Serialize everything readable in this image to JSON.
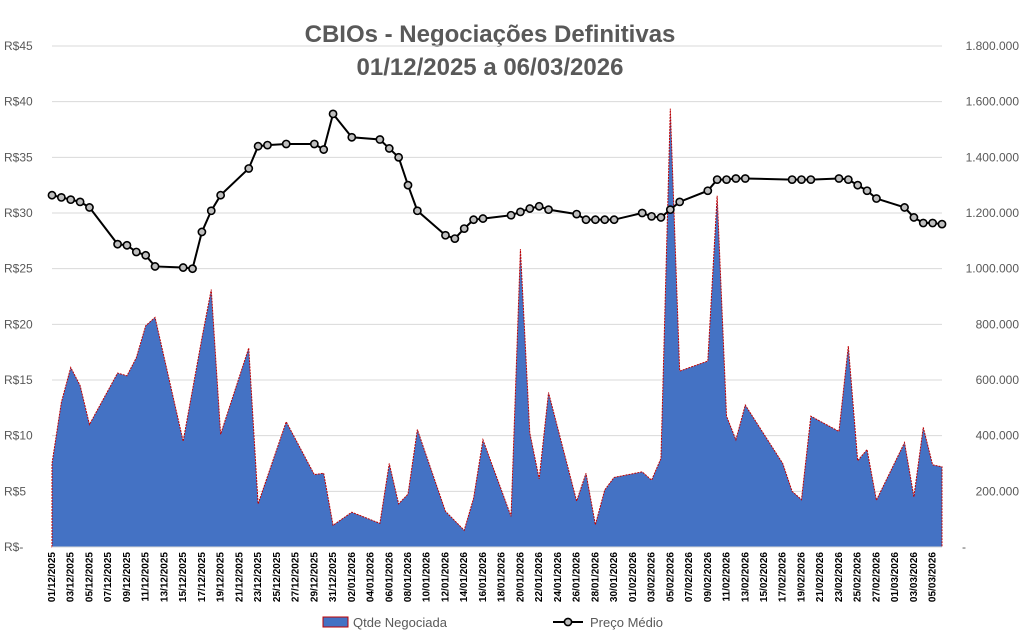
{
  "chart_data": {
    "type": "line",
    "title": "CBIOs - Negociações Definitivas",
    "subtitle": "01/12/2025 a 06/03/2026",
    "left_axis": {
      "ylim": [
        0,
        45
      ],
      "ticks": [
        {
          "value": 0,
          "label": "R$-"
        },
        {
          "value": 5,
          "label": "R$5"
        },
        {
          "value": 10,
          "label": "R$10"
        },
        {
          "value": 15,
          "label": "R$15"
        },
        {
          "value": 20,
          "label": "R$20"
        },
        {
          "value": 25,
          "label": "R$25"
        },
        {
          "value": 30,
          "label": "R$30"
        },
        {
          "value": 35,
          "label": "R$35"
        },
        {
          "value": 40,
          "label": "R$40"
        },
        {
          "value": 45,
          "label": "R$45"
        }
      ]
    },
    "right_axis": {
      "ylim": [
        0,
        1800000
      ],
      "ticks": [
        {
          "value": 0,
          "label": "-"
        },
        {
          "value": 200000,
          "label": "200.000"
        },
        {
          "value": 400000,
          "label": "400.000"
        },
        {
          "value": 600000,
          "label": "600.000"
        },
        {
          "value": 800000,
          "label": "800.000"
        },
        {
          "value": 1000000,
          "label": "1.000.000"
        },
        {
          "value": 1200000,
          "label": "1.200.000"
        },
        {
          "value": 1400000,
          "label": "1.400.000"
        },
        {
          "value": 1600000,
          "label": "1.600.000"
        },
        {
          "value": 1800000,
          "label": "1.800.000"
        }
      ]
    },
    "x_start": "2025-12-01",
    "x_end": "2026-03-06",
    "x_tick_labels": [
      "01/12/2025",
      "03/12/2025",
      "05/12/2025",
      "07/12/2025",
      "09/12/2025",
      "11/12/2025",
      "13/12/2025",
      "15/12/2025",
      "17/12/2025",
      "19/12/2025",
      "21/12/2025",
      "23/12/2025",
      "25/12/2025",
      "27/12/2025",
      "29/12/2025",
      "31/12/2025",
      "02/01/2026",
      "04/01/2026",
      "06/01/2026",
      "08/01/2026",
      "10/01/2026",
      "12/01/2026",
      "14/01/2026",
      "16/01/2026",
      "18/01/2026",
      "20/01/2026",
      "22/01/2026",
      "24/01/2026",
      "26/01/2026",
      "28/01/2026",
      "30/01/2026",
      "01/02/2026",
      "03/02/2026",
      "05/02/2026",
      "07/02/2026",
      "09/02/2026",
      "11/02/2026",
      "13/02/2026",
      "15/02/2026",
      "17/02/2026",
      "19/02/2026",
      "21/02/2026",
      "23/02/2026",
      "25/02/2026",
      "27/02/2026",
      "01/03/2026",
      "03/03/2026",
      "05/03/2026"
    ],
    "grid": true,
    "legend_position": "bottom",
    "series": [
      {
        "name": "Qtde Negociada",
        "type": "area",
        "axis": "right",
        "color": "#4472C4",
        "edge_color": "#C00000",
        "points": [
          [
            "2025-12-01",
            300000
          ],
          [
            "2025-12-02",
            520000
          ],
          [
            "2025-12-03",
            645000
          ],
          [
            "2025-12-04",
            580000
          ],
          [
            "2025-12-05",
            440000
          ],
          [
            "2025-12-08",
            625000
          ],
          [
            "2025-12-09",
            615000
          ],
          [
            "2025-12-10",
            680000
          ],
          [
            "2025-12-11",
            795000
          ],
          [
            "2025-12-12",
            825000
          ],
          [
            "2025-12-15",
            380000
          ],
          [
            "2025-12-17",
            750000
          ],
          [
            "2025-12-18",
            925000
          ],
          [
            "2025-12-19",
            405000
          ],
          [
            "2025-12-22",
            715000
          ],
          [
            "2025-12-23",
            155000
          ],
          [
            "2025-12-26",
            450000
          ],
          [
            "2025-12-29",
            260000
          ],
          [
            "2025-12-30",
            265000
          ],
          [
            "2025-12-31",
            78000
          ],
          [
            "2026-01-02",
            125000
          ],
          [
            "2026-01-05",
            85000
          ],
          [
            "2026-01-06",
            300000
          ],
          [
            "2026-01-07",
            155000
          ],
          [
            "2026-01-08",
            190000
          ],
          [
            "2026-01-09",
            422000
          ],
          [
            "2026-01-12",
            128000
          ],
          [
            "2026-01-14",
            60000
          ],
          [
            "2026-01-15",
            175000
          ],
          [
            "2026-01-16",
            385000
          ],
          [
            "2026-01-19",
            110000
          ],
          [
            "2026-01-20",
            1070000
          ],
          [
            "2026-01-21",
            410000
          ],
          [
            "2026-01-22",
            245000
          ],
          [
            "2026-01-23",
            555000
          ],
          [
            "2026-01-26",
            165000
          ],
          [
            "2026-01-27",
            265000
          ],
          [
            "2026-01-28",
            80000
          ],
          [
            "2026-01-29",
            205000
          ],
          [
            "2026-01-30",
            250000
          ],
          [
            "2026-02-02",
            270000
          ],
          [
            "2026-02-03",
            240000
          ],
          [
            "2026-02-04",
            318000
          ],
          [
            "2026-02-05",
            1575000
          ],
          [
            "2026-02-06",
            632000
          ],
          [
            "2026-02-09",
            668000
          ],
          [
            "2026-02-10",
            1262000
          ],
          [
            "2026-02-11",
            470000
          ],
          [
            "2026-02-12",
            385000
          ],
          [
            "2026-02-13",
            510000
          ],
          [
            "2026-02-17",
            300000
          ],
          [
            "2026-02-18",
            200000
          ],
          [
            "2026-02-19",
            170000
          ],
          [
            "2026-02-20",
            470000
          ],
          [
            "2026-02-23",
            415000
          ],
          [
            "2026-02-24",
            722000
          ],
          [
            "2026-02-25",
            310000
          ],
          [
            "2026-02-26",
            350000
          ],
          [
            "2026-02-27",
            168000
          ],
          [
            "2026-03-02",
            375000
          ],
          [
            "2026-03-03",
            180000
          ],
          [
            "2026-03-04",
            430000
          ],
          [
            "2026-03-05",
            295000
          ],
          [
            "2026-03-06",
            288000
          ]
        ]
      },
      {
        "name": "Preço Médio",
        "type": "line",
        "axis": "left",
        "color": "#000000",
        "points": [
          [
            "2025-12-01",
            31.6
          ],
          [
            "2025-12-02",
            31.4
          ],
          [
            "2025-12-03",
            31.2
          ],
          [
            "2025-12-04",
            31.0
          ],
          [
            "2025-12-05",
            30.5
          ],
          [
            "2025-12-08",
            27.2
          ],
          [
            "2025-12-09",
            27.1
          ],
          [
            "2025-12-10",
            26.5
          ],
          [
            "2025-12-11",
            26.2
          ],
          [
            "2025-12-12",
            25.2
          ],
          [
            "2025-12-15",
            25.1
          ],
          [
            "2025-12-16",
            25.0
          ],
          [
            "2025-12-17",
            28.3
          ],
          [
            "2025-12-18",
            30.2
          ],
          [
            "2025-12-19",
            31.6
          ],
          [
            "2025-12-22",
            34.0
          ],
          [
            "2025-12-23",
            36.0
          ],
          [
            "2025-12-24",
            36.1
          ],
          [
            "2025-12-26",
            36.2
          ],
          [
            "2025-12-29",
            36.2
          ],
          [
            "2025-12-30",
            35.7
          ],
          [
            "2025-12-31",
            38.9
          ],
          [
            "2026-01-02",
            36.8
          ],
          [
            "2026-01-05",
            36.6
          ],
          [
            "2026-01-06",
            35.8
          ],
          [
            "2026-01-07",
            35.0
          ],
          [
            "2026-01-08",
            32.5
          ],
          [
            "2026-01-09",
            30.2
          ],
          [
            "2026-01-12",
            28.0
          ],
          [
            "2026-01-13",
            27.7
          ],
          [
            "2026-01-14",
            28.6
          ],
          [
            "2026-01-15",
            29.4
          ],
          [
            "2026-01-16",
            29.5
          ],
          [
            "2026-01-19",
            29.8
          ],
          [
            "2026-01-20",
            30.1
          ],
          [
            "2026-01-21",
            30.4
          ],
          [
            "2026-01-22",
            30.6
          ],
          [
            "2026-01-23",
            30.3
          ],
          [
            "2026-01-26",
            29.9
          ],
          [
            "2026-01-27",
            29.4
          ],
          [
            "2026-01-28",
            29.4
          ],
          [
            "2026-01-29",
            29.4
          ],
          [
            "2026-01-30",
            29.4
          ],
          [
            "2026-02-02",
            30.0
          ],
          [
            "2026-02-03",
            29.7
          ],
          [
            "2026-02-04",
            29.6
          ],
          [
            "2026-02-05",
            30.3
          ],
          [
            "2026-02-06",
            31.0
          ],
          [
            "2026-02-09",
            32.0
          ],
          [
            "2026-02-10",
            33.0
          ],
          [
            "2026-02-11",
            33.0
          ],
          [
            "2026-02-12",
            33.1
          ],
          [
            "2026-02-13",
            33.1
          ],
          [
            "2026-02-18",
            33.0
          ],
          [
            "2026-02-19",
            33.0
          ],
          [
            "2026-02-20",
            33.0
          ],
          [
            "2026-02-23",
            33.1
          ],
          [
            "2026-02-24",
            33.0
          ],
          [
            "2026-02-25",
            32.5
          ],
          [
            "2026-02-26",
            32.0
          ],
          [
            "2026-02-27",
            31.3
          ],
          [
            "2026-03-02",
            30.5
          ],
          [
            "2026-03-03",
            29.6
          ],
          [
            "2026-03-04",
            29.1
          ],
          [
            "2026-03-05",
            29.1
          ],
          [
            "2026-03-06",
            29.0
          ]
        ]
      }
    ]
  }
}
